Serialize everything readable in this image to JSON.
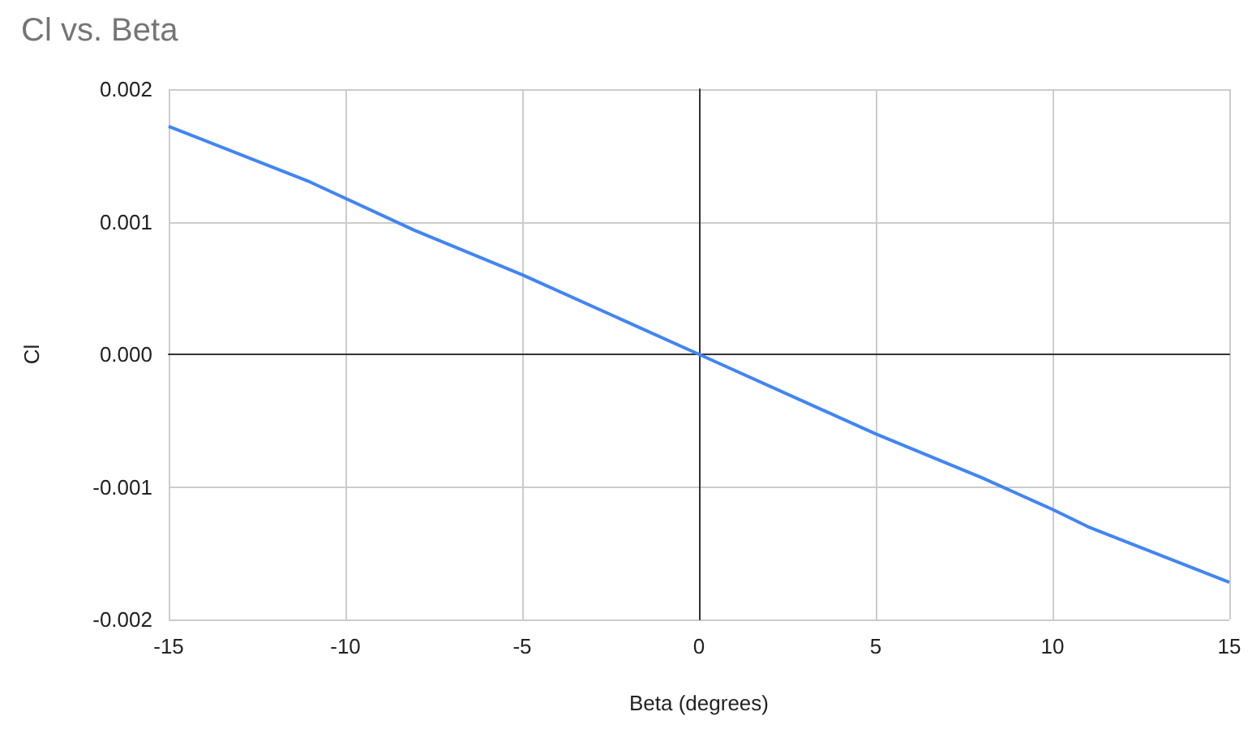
{
  "chart_data": {
    "type": "line",
    "title": "Cl vs. Beta",
    "xlabel": "Beta (degrees)",
    "ylabel": "Cl",
    "x": [
      -15,
      -11,
      -8,
      -5,
      0,
      5,
      8,
      10,
      11,
      15
    ],
    "series": [
      {
        "color": "#4285f4",
        "values": [
          0.00172,
          0.0013,
          0.00093,
          0.0006,
          0,
          -0.0006,
          -0.00093,
          -0.00117,
          -0.0013,
          -0.00172
        ]
      }
    ],
    "xlim": [
      -15,
      15
    ],
    "xticks": [
      -15,
      -10,
      -5,
      0,
      5,
      10,
      15
    ],
    "ylim": [
      -0.002,
      0.002
    ],
    "yticks": [
      -0.002,
      -0.001,
      {
        "value": 0,
        "label": "0.000"
      },
      0.001,
      0.002
    ],
    "grid": true,
    "marker": "none",
    "line_style": "solid"
  }
}
